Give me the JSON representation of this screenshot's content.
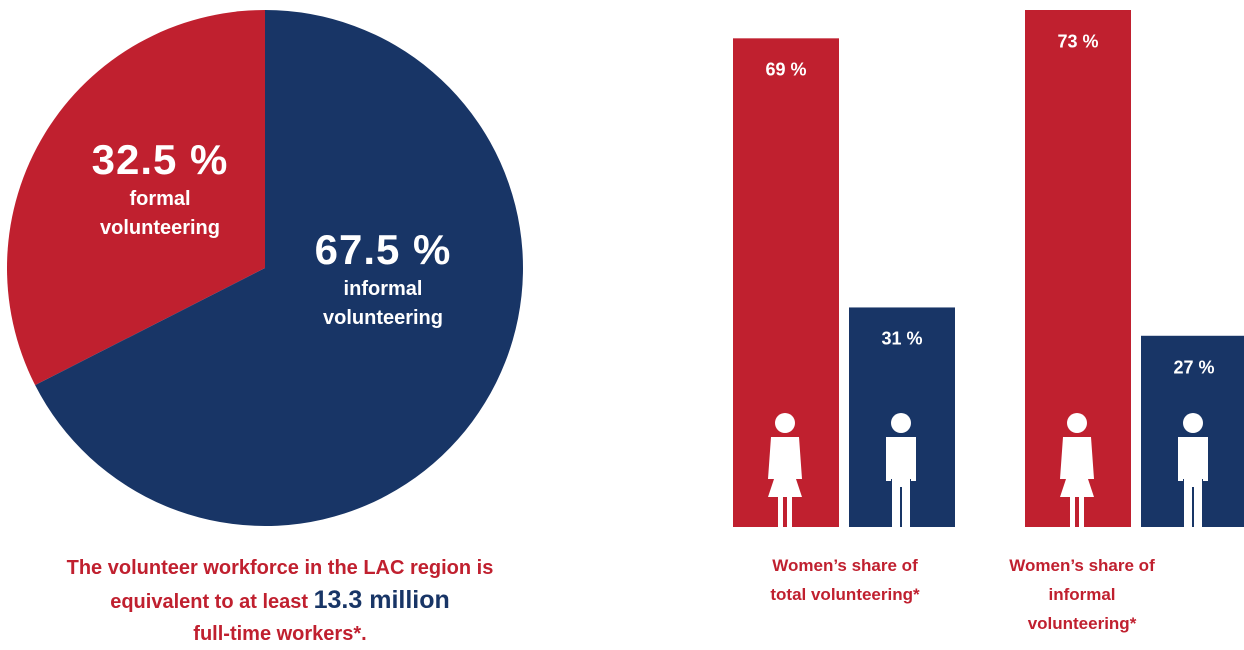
{
  "chart_data": [
    {
      "type": "pie",
      "categories": [
        "formal volunteering",
        "informal volunteering"
      ],
      "values": [
        32.5,
        67.5
      ],
      "value_labels": [
        "32.5 %",
        "67.5 %"
      ],
      "colors": [
        "#c0202f",
        "#183566"
      ],
      "counterclockwise": true,
      "annotation": {
        "before": "The volunteer workforce in the LAC region is equivalent to at least",
        "highlight": "13.3 million",
        "after": "full-time workers*."
      }
    },
    {
      "type": "bar",
      "categories": [
        "Women’s share of total volunteering*",
        "Women’s share of informal volunteering*"
      ],
      "series": [
        {
          "color": "#c0202f",
          "values": [
            69,
            73
          ],
          "value_labels": [
            "69 %",
            "73 %"
          ]
        },
        {
          "color": "#183566",
          "values": [
            31,
            27
          ],
          "value_labels": [
            "31 %",
            "27 %"
          ]
        }
      ],
      "ylim": [
        0,
        73
      ]
    }
  ]
}
